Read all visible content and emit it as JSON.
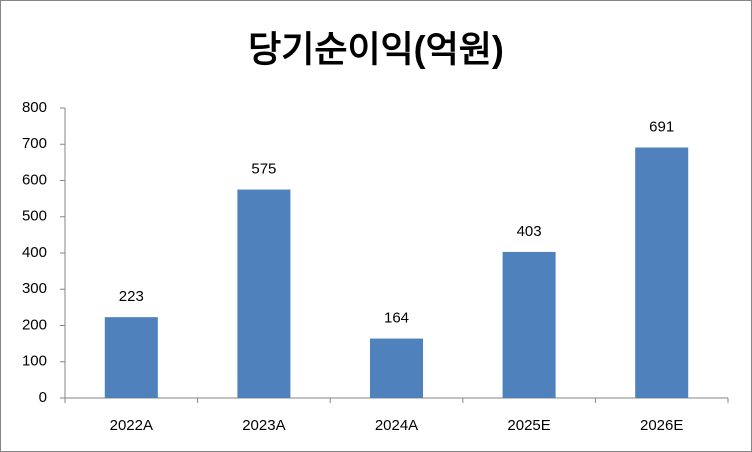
{
  "chart_data": {
    "type": "bar",
    "title": "당기순이익(억원)",
    "categories": [
      "2022A",
      "2023A",
      "2024A",
      "2025E",
      "2026E"
    ],
    "values": [
      223,
      575,
      164,
      403,
      691
    ],
    "color": "#4f81bd",
    "ylim": [
      0,
      800
    ],
    "yticks": [
      0,
      100,
      200,
      300,
      400,
      500,
      600,
      700,
      800
    ],
    "grid": false
  }
}
